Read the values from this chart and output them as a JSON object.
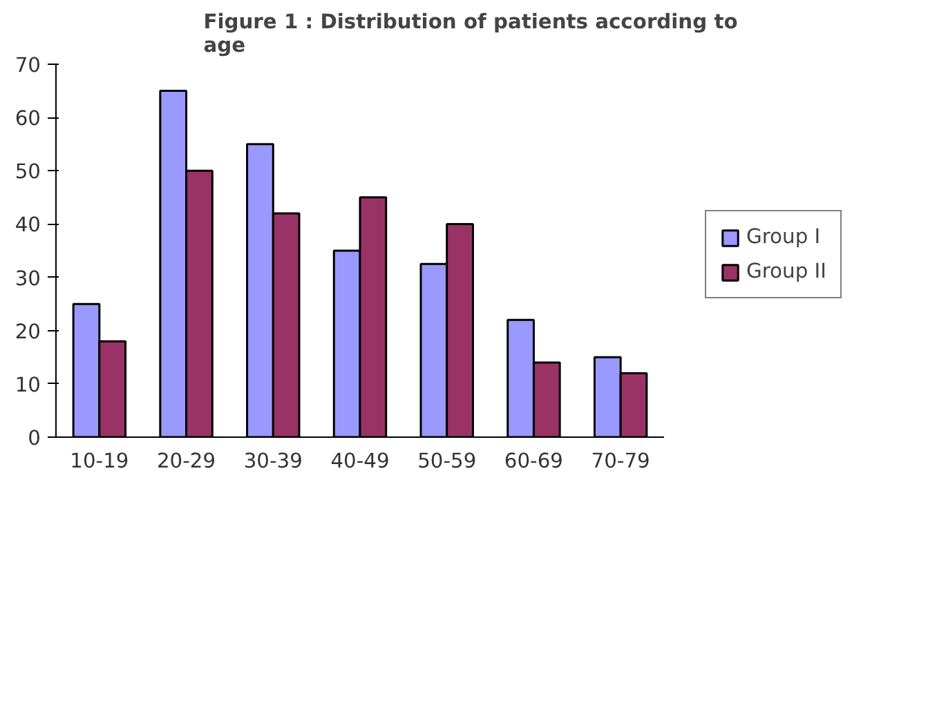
{
  "chart_data": {
    "type": "bar",
    "title": "Figure 1 : Distribution of patients according to age",
    "categories": [
      "10-19",
      "20-29",
      "30-39",
      "40-49",
      "50-59",
      "60-69",
      "70-79"
    ],
    "series": [
      {
        "name": "Group I",
        "color": "#9999ff",
        "values": [
          25,
          65,
          55,
          35,
          32.5,
          22,
          15
        ]
      },
      {
        "name": "Group II",
        "color": "#993366",
        "values": [
          18,
          50,
          42,
          45,
          40,
          14,
          12
        ]
      }
    ],
    "ylim": [
      0,
      70
    ],
    "yticks": [
      0,
      10,
      20,
      30,
      40,
      50,
      60,
      70
    ],
    "grid": false,
    "legend": "right"
  }
}
